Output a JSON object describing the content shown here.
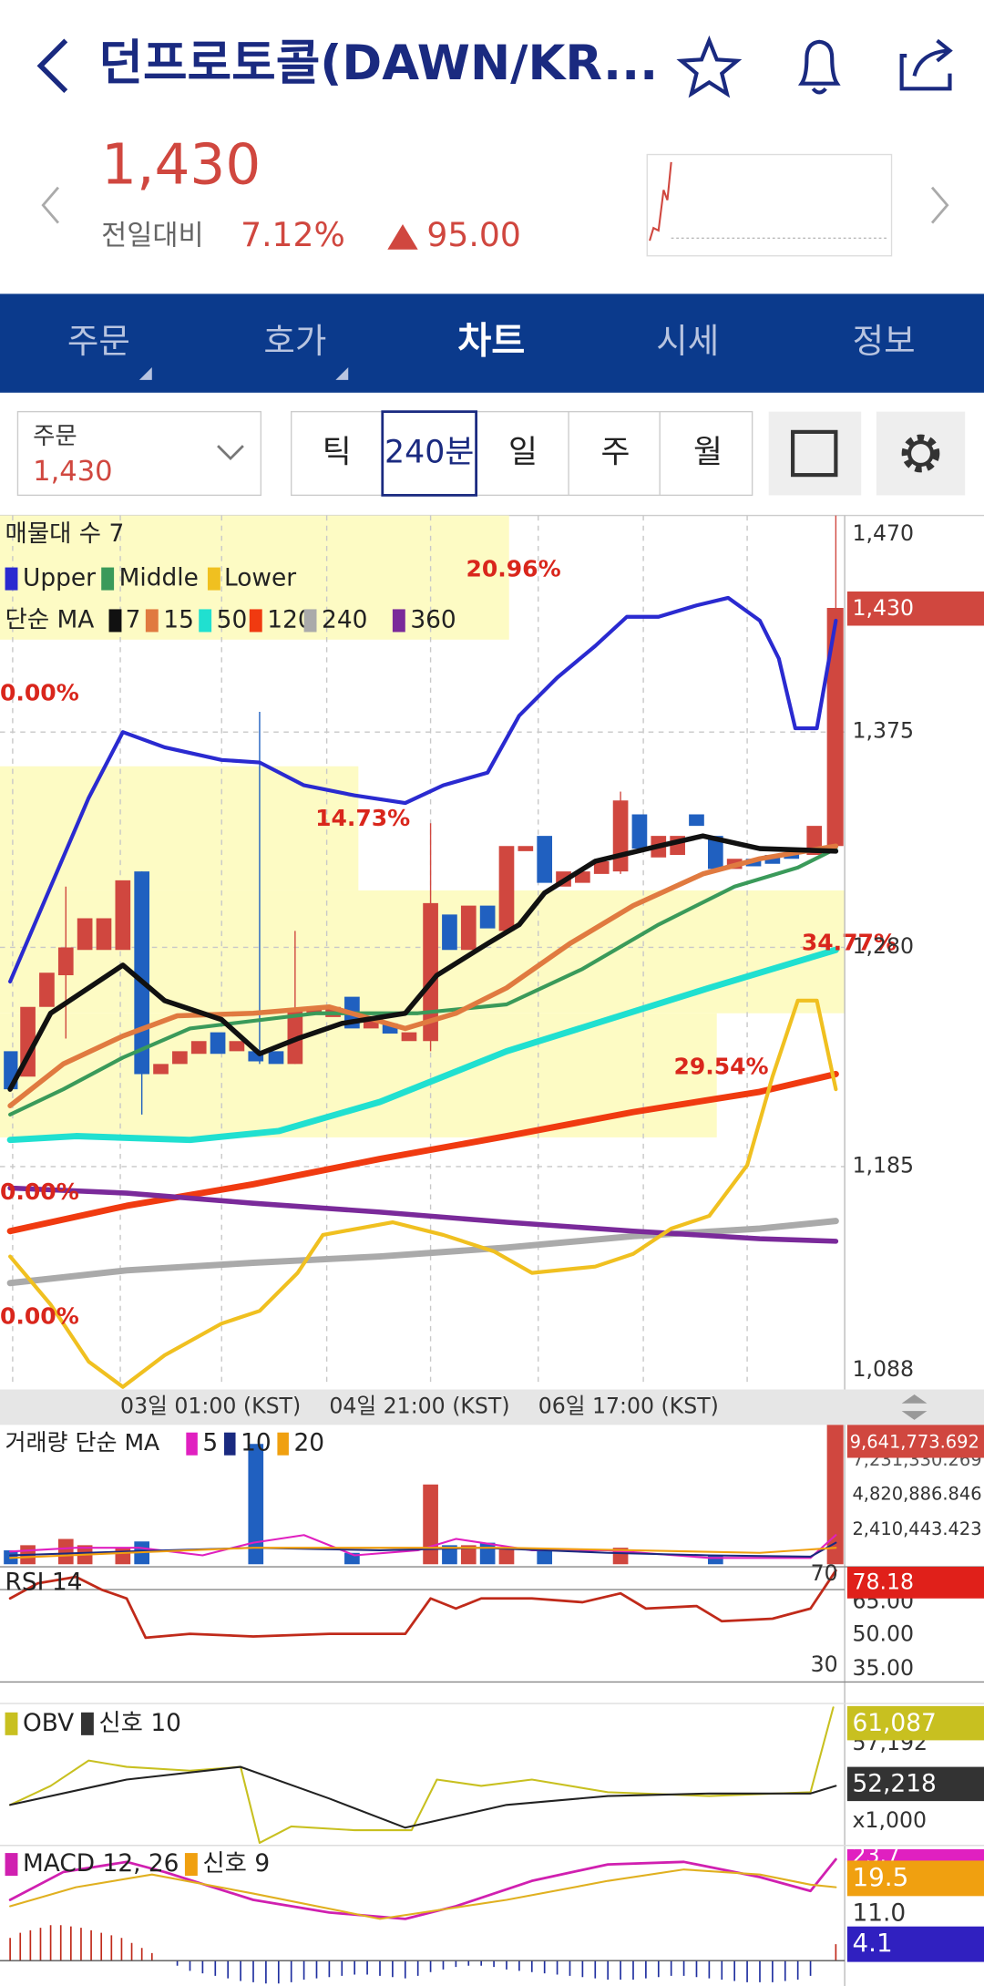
{
  "header": {
    "title": "던프로토콜(DAWN/KR..."
  },
  "price": {
    "current": "1,430",
    "change_label": "전일대비",
    "change_percent": "7.12%",
    "change_amount": "95.00"
  },
  "tabs": [
    "주문",
    "호가",
    "차트",
    "시세",
    "정보"
  ],
  "toolbar": {
    "order_label": "주문",
    "order_price": "1,430",
    "periods": [
      "틱",
      "240분",
      "일",
      "주",
      "월"
    ]
  },
  "main_chart": {
    "volume_profile_label": "매물대 수 7",
    "band_legend": [
      "Upper",
      "Middle",
      "Lower"
    ],
    "ma_label": "단순 MA",
    "ma_legend": [
      "7",
      "15",
      "50",
      "120",
      "240",
      "360"
    ],
    "profile_percents": [
      "20.96%",
      "0.00%",
      "14.73%",
      "34.77%",
      "29.54%",
      "0.00%",
      "0.00%"
    ],
    "price_axis": [
      "1,470",
      "1,375",
      "1,280",
      "1,185",
      "1,088"
    ],
    "current_price": "1,430",
    "time_axis": [
      "03일 01:00 (KST)",
      "04일 21:00 (KST)",
      "06일 17:00 (KST)"
    ]
  },
  "volume": {
    "label": "거래량 단순 MA",
    "ma_legend": [
      "5",
      "10",
      "20"
    ],
    "axis": [
      "9,641,773.692",
      "7,231,330.269",
      "4,820,886.846",
      "2,410,443.423"
    ]
  },
  "rsi": {
    "label": "RSI 14",
    "upper": "70",
    "lower": "30",
    "current": "78.18",
    "axis": [
      "65.00",
      "50.00",
      "35.00"
    ]
  },
  "obv": {
    "label": "OBV",
    "signal_label": "신호 10",
    "current": "61,087",
    "axis": [
      "57,192"
    ],
    "signal_current": "52,218",
    "unit": "x1,000"
  },
  "macd": {
    "label": "MACD 12, 26",
    "signal_label": "신호 9",
    "axis_top": "23.7",
    "signal_current": "19.5",
    "axis_mid": "11.0",
    "histogram_current": "4.1"
  }
}
